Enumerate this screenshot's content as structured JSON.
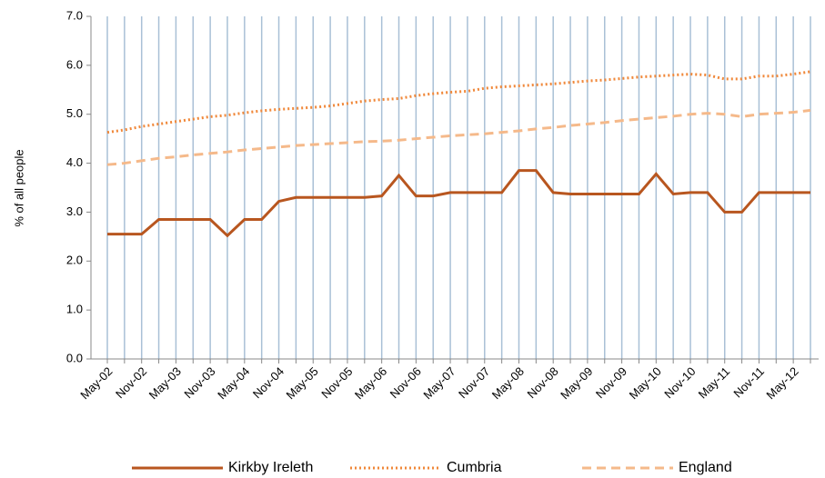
{
  "chart_data": {
    "type": "line",
    "y_label": "% of all people",
    "categories": [
      "May-02",
      null,
      "Nov-02",
      null,
      "May-03",
      null,
      "Nov-03",
      null,
      "May-04",
      null,
      "Nov-04",
      null,
      "May-05",
      null,
      "Nov-05",
      null,
      "May-06",
      null,
      "Nov-06",
      null,
      "May-07",
      null,
      "Nov-07",
      null,
      "May-08",
      null,
      "Nov-08",
      null,
      "May-09",
      null,
      "Nov-09",
      null,
      "May-10",
      null,
      "Nov-10",
      null,
      "May-11",
      null,
      "Nov-11",
      null,
      "May-12",
      null
    ],
    "series": [
      {
        "name": "Kirkby Ireleth",
        "color": "#b8561f",
        "style": "solid",
        "values": [
          2.55,
          2.55,
          2.55,
          2.85,
          2.85,
          2.85,
          2.85,
          2.52,
          2.85,
          2.85,
          3.22,
          3.3,
          3.3,
          3.3,
          3.3,
          3.3,
          3.33,
          3.75,
          3.33,
          3.33,
          3.4,
          3.4,
          3.4,
          3.4,
          3.85,
          3.85,
          3.4,
          3.37,
          3.37,
          3.37,
          3.37,
          3.37,
          3.78,
          3.37,
          3.4,
          3.4,
          3.0,
          3.0,
          3.4,
          3.4,
          3.4,
          3.4
        ]
      },
      {
        "name": "Cumbria",
        "color": "#f0883a",
        "style": "dotted",
        "values": [
          4.63,
          4.68,
          4.75,
          4.8,
          4.85,
          4.9,
          4.95,
          4.98,
          5.03,
          5.07,
          5.1,
          5.12,
          5.14,
          5.17,
          5.22,
          5.27,
          5.3,
          5.32,
          5.38,
          5.42,
          5.45,
          5.47,
          5.53,
          5.56,
          5.58,
          5.6,
          5.62,
          5.65,
          5.68,
          5.7,
          5.73,
          5.76,
          5.78,
          5.8,
          5.82,
          5.8,
          5.72,
          5.72,
          5.78,
          5.78,
          5.82,
          5.87
        ]
      },
      {
        "name": "England",
        "color": "#f5b98a",
        "style": "dashed",
        "values": [
          3.97,
          4.0,
          4.05,
          4.1,
          4.13,
          4.17,
          4.2,
          4.23,
          4.27,
          4.3,
          4.33,
          4.36,
          4.38,
          4.4,
          4.42,
          4.44,
          4.45,
          4.47,
          4.5,
          4.53,
          4.56,
          4.58,
          4.6,
          4.63,
          4.66,
          4.7,
          4.73,
          4.77,
          4.8,
          4.83,
          4.87,
          4.9,
          4.93,
          4.96,
          5.0,
          5.02,
          5.0,
          4.95,
          5.0,
          5.02,
          5.04,
          5.08
        ]
      }
    ],
    "ylim": [
      0,
      7
    ],
    "yticks": [
      {
        "value": 0,
        "label": "0.0"
      },
      {
        "value": 1,
        "label": "1.0"
      },
      {
        "value": 2,
        "label": "2.0"
      },
      {
        "value": 3,
        "label": "3.0"
      },
      {
        "value": 4,
        "label": "4.0"
      },
      {
        "value": 5,
        "label": "5.0"
      },
      {
        "value": 6,
        "label": "6.0"
      },
      {
        "value": 7,
        "label": "7.0"
      }
    ],
    "grid": "x",
    "grid_color": "#a9c0d6",
    "legend": "bottom"
  }
}
